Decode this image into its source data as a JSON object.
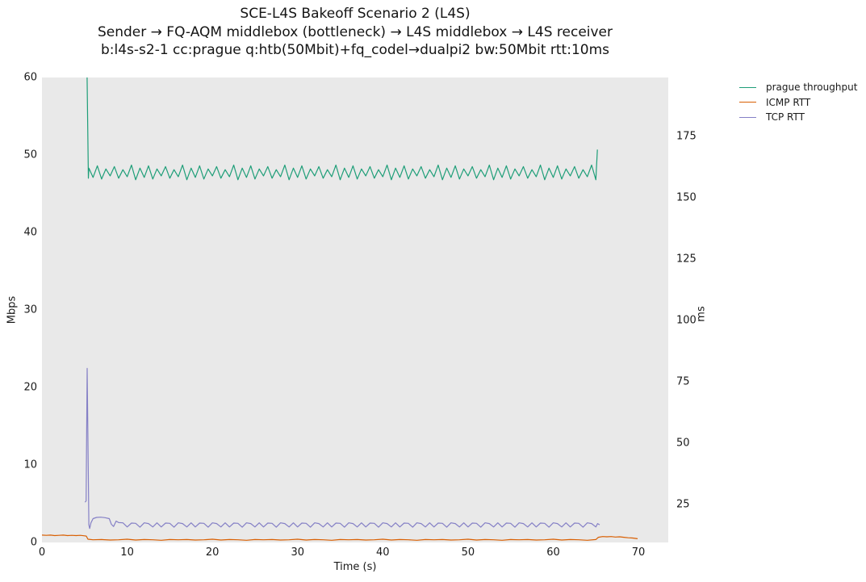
{
  "chart_data": {
    "type": "line",
    "title": "SCE-L4S Bakeoff Scenario 2 (L4S)",
    "subtitle1": "Sender → FQ-AQM middlebox (bottleneck) → L4S middlebox → L4S receiver",
    "subtitle2": "b:l4s-s2-1 cc:prague q:htb(50Mbit)+fq_codel→dualpi2 bw:50Mbit rtt:10ms",
    "xlabel": "Time (s)",
    "ylabel_left": "Mbps",
    "ylabel_right": "ms",
    "xlim": [
      0,
      73.5
    ],
    "ylim_left": [
      0,
      60
    ],
    "ylim_right": [
      9.6,
      199
    ],
    "xticks": [
      0,
      10,
      20,
      30,
      40,
      50,
      60,
      70
    ],
    "yticks_left": [
      0,
      10,
      20,
      30,
      40,
      50,
      60
    ],
    "yticks_right": [
      25,
      50,
      75,
      100,
      125,
      150,
      175
    ],
    "grid": false,
    "plot_bg": "#e9e9e9",
    "legend_position": "outside-upper-right",
    "series": [
      {
        "name": "prague throughput",
        "axis": "left",
        "color": "#1e9e78",
        "segments": [
          {
            "points": [
              [
                5.18,
                70
              ],
              [
                5.45,
                47.0
              ]
            ]
          },
          {
            "t0": 5.5,
            "dt": 0.5,
            "values": [
              48.3,
              47.1,
              48.6,
              46.9,
              48.2,
              47.3,
              48.5,
              47.0,
              48.1,
              47.2,
              48.7,
              46.8,
              48.3,
              47.1,
              48.6,
              46.9,
              48.2,
              47.3,
              48.5,
              47.0,
              48.1,
              47.2,
              48.7,
              46.8,
              48.3,
              47.1,
              48.6,
              46.9,
              48.2,
              47.3,
              48.5,
              47.0,
              48.1,
              47.2,
              48.7,
              46.8,
              48.3,
              47.1,
              48.6,
              46.9,
              48.2,
              47.3,
              48.5,
              47.0,
              48.1,
              47.2,
              48.7,
              46.8,
              48.3,
              47.1,
              48.6,
              46.9,
              48.2,
              47.3,
              48.5,
              47.0,
              48.1,
              47.2,
              48.7,
              46.8,
              48.3,
              47.1,
              48.6,
              46.9,
              48.2,
              47.3,
              48.5,
              47.0,
              48.1,
              47.2,
              48.7,
              46.8,
              48.3,
              47.1,
              48.6,
              46.9,
              48.2,
              47.3,
              48.5,
              47.0,
              48.1,
              47.2,
              48.7,
              46.8,
              48.3,
              47.1,
              48.6,
              46.9,
              48.2,
              47.3,
              48.5,
              47.0,
              48.1,
              47.2,
              48.7,
              46.8,
              48.3,
              47.1,
              48.6,
              46.9,
              48.2,
              47.3,
              48.5,
              47.0,
              48.1,
              47.2,
              48.7,
              46.8,
              48.3,
              47.1,
              48.6,
              46.9,
              48.2,
              47.3,
              48.5,
              47.0,
              48.1,
              47.2,
              48.7,
              46.8
            ]
          },
          {
            "points": [
              [
                65.05,
                47.9
              ],
              [
                65.18,
                50.7
              ]
            ]
          }
        ]
      },
      {
        "name": "ICMP RTT",
        "axis": "right",
        "color": "#d95f02",
        "segments": [
          {
            "t0": 0,
            "dt": 0.5,
            "values": [
              12.6,
              12.5,
              12.6,
              12.4,
              12.5,
              12.6,
              12.4,
              12.5,
              12.4,
              12.5,
              12.3
            ]
          },
          {
            "points": [
              [
                5.2,
                12.2
              ],
              [
                5.4,
                10.9
              ]
            ]
          },
          {
            "t0": 6,
            "dt": 1,
            "values": [
              10.7,
              10.8,
              10.6,
              10.7,
              10.9,
              10.6,
              10.8,
              10.7,
              10.5,
              10.8,
              10.7,
              10.8,
              10.6,
              10.7,
              10.9,
              10.6,
              10.8,
              10.7,
              10.5,
              10.8,
              10.7,
              10.8,
              10.6,
              10.7,
              10.9,
              10.6,
              10.8,
              10.7,
              10.5,
              10.8,
              10.7,
              10.8,
              10.6,
              10.7,
              10.9,
              10.6,
              10.8,
              10.7,
              10.5,
              10.8,
              10.7,
              10.8,
              10.6,
              10.7,
              10.9,
              10.6,
              10.8,
              10.7,
              10.5,
              10.8,
              10.7,
              10.8,
              10.6,
              10.7,
              10.9,
              10.6,
              10.8,
              10.7,
              10.5,
              10.8
            ]
          },
          {
            "points": [
              [
                65.3,
                11.7
              ],
              [
                65.8,
                12.0
              ],
              [
                66.3,
                11.9
              ],
              [
                66.8,
                12.0
              ],
              [
                67.3,
                11.8
              ],
              [
                67.8,
                11.9
              ],
              [
                68.3,
                11.7
              ],
              [
                68.8,
                11.5
              ],
              [
                69.3,
                11.4
              ],
              [
                69.9,
                11.1
              ]
            ]
          }
        ]
      },
      {
        "name": "TCP RTT",
        "axis": "right",
        "color": "#8580c6",
        "segments": [
          {
            "points": [
              [
                5.05,
                26.0
              ],
              [
                5.18,
                26.5
              ],
              [
                5.3,
                80.5
              ],
              [
                5.5,
                16.8
              ],
              [
                5.6,
                15.3
              ],
              [
                5.75,
                17.6
              ],
              [
                6.0,
                19.3
              ],
              [
                6.4,
                19.8
              ],
              [
                6.9,
                19.9
              ],
              [
                7.4,
                19.7
              ],
              [
                7.9,
                19.3
              ],
              [
                8.15,
                17.0
              ],
              [
                8.4,
                16.1
              ],
              [
                8.7,
                18.3
              ],
              [
                9.0,
                17.7
              ]
            ]
          },
          {
            "t0": 9.5,
            "dt": 0.5,
            "values": [
              17.6,
              15.9,
              17.5,
              17.4,
              15.8,
              17.6,
              17.3,
              15.9,
              17.6,
              15.9,
              17.5,
              17.4,
              15.8,
              17.6,
              17.3,
              15.9,
              17.6,
              15.9,
              17.5,
              17.4,
              15.8,
              17.6,
              17.3,
              15.9,
              17.6,
              15.9,
              17.5,
              17.4,
              15.8,
              17.6,
              17.3,
              15.9,
              17.6,
              15.9,
              17.5,
              17.4,
              15.8,
              17.6,
              17.3,
              15.9,
              17.6,
              15.9,
              17.5,
              17.4,
              15.8,
              17.6,
              17.3,
              15.9,
              17.6,
              15.9,
              17.5,
              17.4,
              15.8,
              17.6,
              17.3,
              15.9,
              17.6,
              15.9,
              17.5,
              17.4,
              15.8,
              17.6,
              17.3,
              15.9,
              17.6,
              15.9,
              17.5,
              17.4,
              15.8,
              17.6,
              17.3,
              15.9,
              17.6,
              15.9,
              17.5,
              17.4,
              15.8,
              17.6,
              17.3,
              15.9,
              17.6,
              15.9,
              17.5,
              17.4,
              15.8,
              17.6,
              17.3,
              15.9,
              17.6,
              15.9,
              17.5,
              17.4,
              15.8,
              17.6,
              17.3,
              15.9,
              17.6,
              15.9,
              17.5,
              17.4,
              15.8,
              17.6,
              17.3,
              15.9,
              17.6,
              15.9,
              17.5,
              17.4,
              15.8,
              17.6,
              17.3,
              15.9
            ]
          },
          {
            "points": [
              [
                65.2,
                17.3
              ],
              [
                65.45,
                16.8
              ]
            ]
          }
        ]
      }
    ]
  }
}
